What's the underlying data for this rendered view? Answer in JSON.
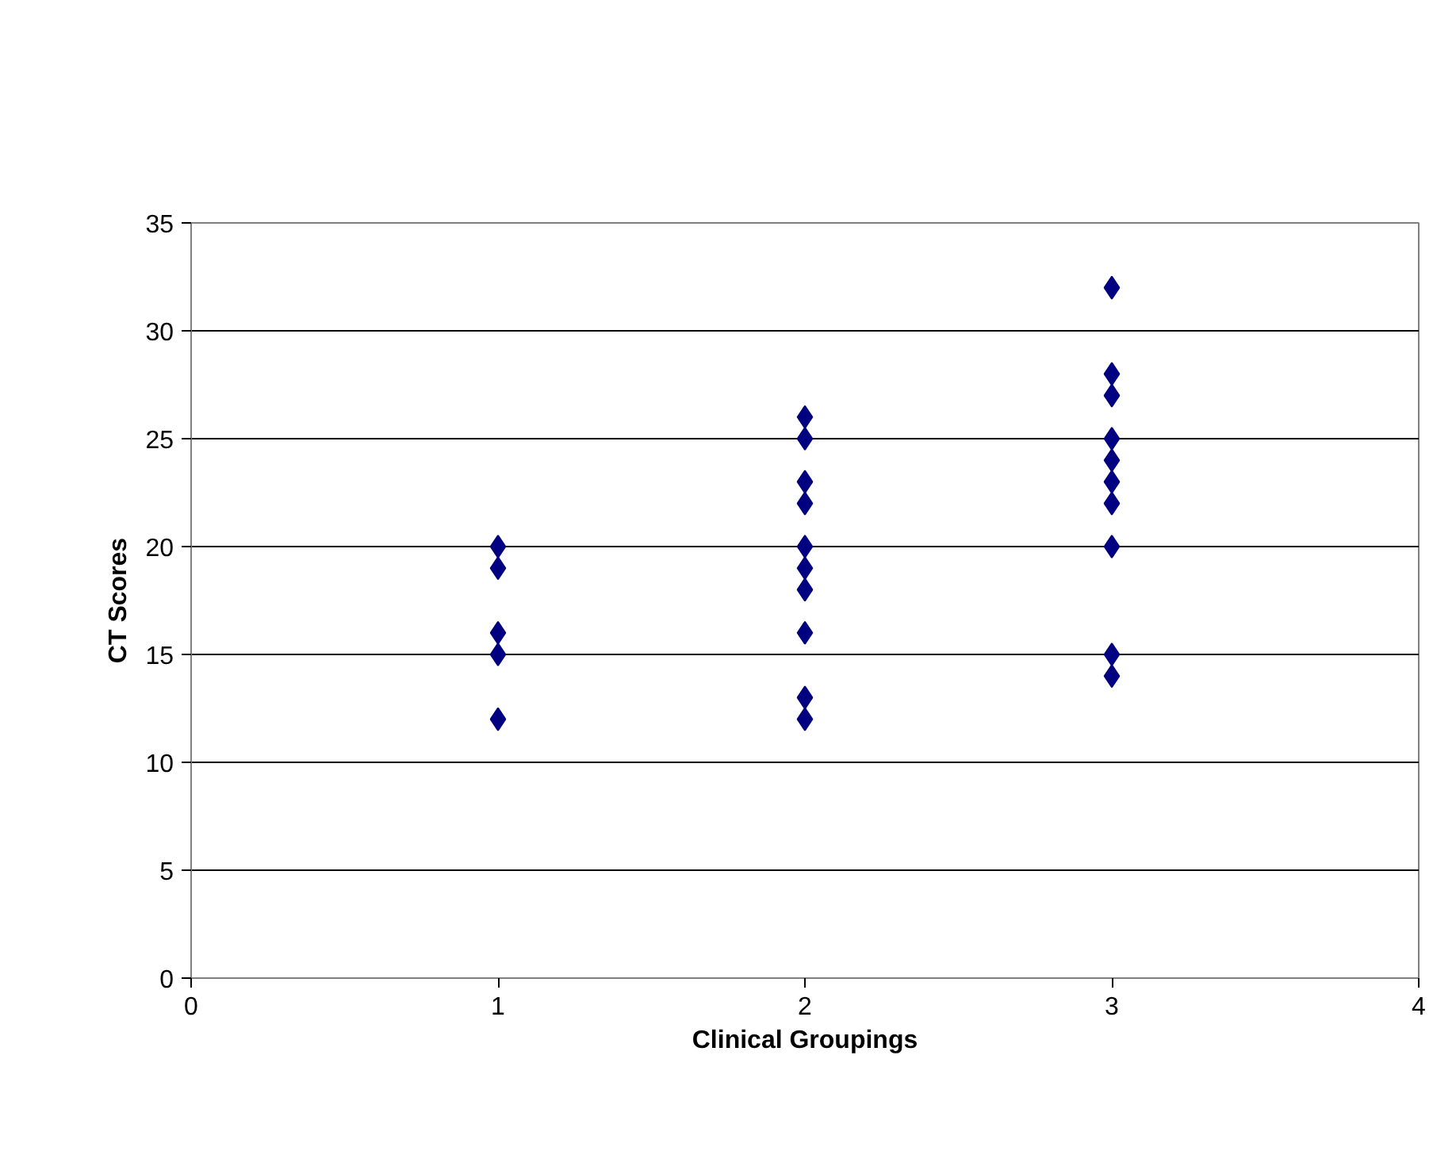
{
  "chart_data": {
    "type": "scatter",
    "xlabel": "Clinical Groupings",
    "ylabel": "CT Scores",
    "x": [
      1,
      1,
      1,
      1,
      1,
      2,
      2,
      2,
      2,
      2,
      2,
      2,
      2,
      2,
      2,
      3,
      3,
      3,
      3,
      3,
      3,
      3,
      3,
      3,
      3
    ],
    "values": [
      20,
      19,
      16,
      15,
      12,
      26,
      25,
      23,
      22,
      20,
      19,
      18,
      16,
      13,
      12,
      32,
      28,
      27,
      25,
      24,
      23,
      22,
      20,
      15,
      14
    ],
    "color": "#000080",
    "marker": "diamond",
    "xlim": [
      0,
      4
    ],
    "xticks": [
      0,
      1,
      2,
      3,
      4
    ],
    "ylim": [
      0,
      35
    ],
    "yticks": [
      0,
      5,
      10,
      15,
      20,
      25,
      30,
      35
    ],
    "grid": "y"
  }
}
